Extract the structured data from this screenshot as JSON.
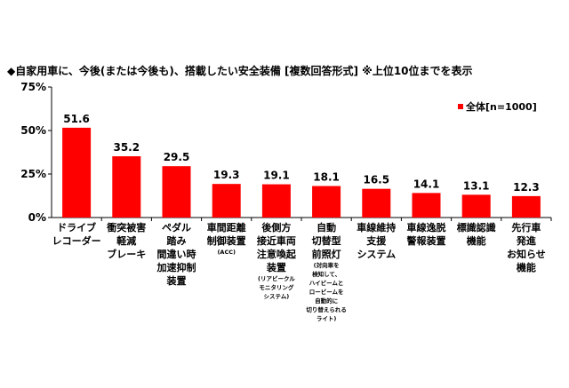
{
  "chart_data": {
    "type": "bar",
    "title": "◆自家用車に、今後(または今後も)、搭載したい安全装備 [複数回答形式] ※上位10位までを表示",
    "ylabel": "",
    "xlabel": "",
    "ylim": [
      0,
      75
    ],
    "yticks": [
      "0%",
      "25%",
      "50%",
      "75%"
    ],
    "yticks_values": [
      0,
      25,
      50,
      75
    ],
    "grid": false,
    "legend_position": "top-right",
    "bar_color": "#ff0000",
    "series": [
      {
        "name": "全体[n=1000]",
        "values": [
          51.6,
          35.2,
          29.5,
          19.3,
          19.1,
          18.1,
          16.5,
          14.1,
          13.1,
          12.3
        ]
      }
    ],
    "value_labels": [
      "51.6",
      "35.2",
      "29.5",
      "19.3",
      "19.1",
      "18.1",
      "16.5",
      "14.1",
      "13.1",
      "12.3"
    ],
    "categories": [
      {
        "lines": [
          "ドライブ",
          "レコーダー"
        ],
        "note": []
      },
      {
        "lines": [
          "衝突被害",
          "軽減",
          "ブレーキ"
        ],
        "note": []
      },
      {
        "lines": [
          "ペダル",
          "踏み",
          "間違い時",
          "加速抑制",
          "装置"
        ],
        "note": []
      },
      {
        "lines": [
          "車間距離",
          "制御装置"
        ],
        "note": [
          "(ACC)"
        ]
      },
      {
        "lines": [
          "後側方",
          "接近車両",
          "注意喚起",
          "装置"
        ],
        "note": [
          "(リアビークル",
          "モニタリング",
          "システム)"
        ]
      },
      {
        "lines": [
          "自動",
          "切替型",
          "前照灯"
        ],
        "note": [
          "(対向車を",
          "検知して、",
          "ハイビームと",
          "ロービームを",
          "自動的に",
          "切り替えられる",
          "ライト)"
        ]
      },
      {
        "lines": [
          "車線維持",
          "支援",
          "システム"
        ],
        "note": []
      },
      {
        "lines": [
          "車線逸脱",
          "警報装置"
        ],
        "note": []
      },
      {
        "lines": [
          "標識認識",
          "機能"
        ],
        "note": []
      },
      {
        "lines": [
          "先行車",
          "発進",
          "お知らせ",
          "機能"
        ],
        "note": []
      }
    ]
  }
}
